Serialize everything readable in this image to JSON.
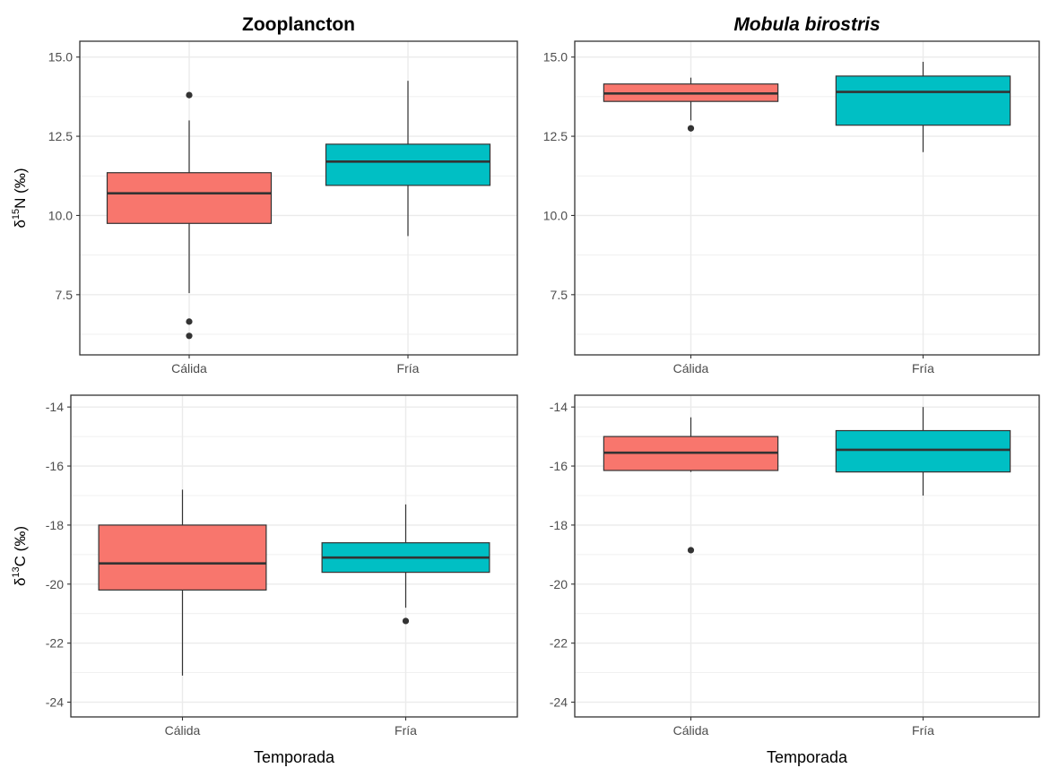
{
  "chart_data": [
    {
      "type": "boxplot",
      "title": "Zooplancton",
      "title_italic": false,
      "ylabel": {
        "prefix": "δ",
        "sup": "15",
        "rest": "N (‰)"
      },
      "xlabel": "",
      "categories": [
        "Cálida",
        "Fría"
      ],
      "ylim": [
        5.6,
        15.5
      ],
      "yticks": [
        7.5,
        10.0,
        12.5,
        15.0
      ],
      "ytick_labels": [
        "7.5",
        "10.0",
        "12.5",
        "15.0"
      ],
      "boxes": [
        {
          "category": "Cálida",
          "whisker_low": 7.55,
          "q1": 9.75,
          "median": 10.7,
          "q3": 11.35,
          "whisker_high": 13.0,
          "outliers": [
            13.8,
            6.65,
            6.2
          ],
          "color": "#F8766D"
        },
        {
          "category": "Fría",
          "whisker_low": 9.35,
          "q1": 10.95,
          "median": 11.7,
          "q3": 12.25,
          "whisker_high": 14.25,
          "outliers": [],
          "color": "#00BFC4"
        }
      ]
    },
    {
      "type": "boxplot",
      "title": "Mobula birostris",
      "title_italic": true,
      "ylabel": null,
      "xlabel": "",
      "categories": [
        "Cálida",
        "Fría"
      ],
      "ylim": [
        5.6,
        15.5
      ],
      "yticks": [
        7.5,
        10.0,
        12.5,
        15.0
      ],
      "ytick_labels": [
        "7.5",
        "10.0",
        "12.5",
        "15.0"
      ],
      "boxes": [
        {
          "category": "Cálida",
          "whisker_low": 13.0,
          "q1": 13.6,
          "median": 13.85,
          "q3": 14.15,
          "whisker_high": 14.35,
          "outliers": [
            12.75
          ],
          "color": "#F8766D"
        },
        {
          "category": "Fría",
          "whisker_low": 12.0,
          "q1": 12.85,
          "median": 13.9,
          "q3": 14.4,
          "whisker_high": 14.85,
          "outliers": [],
          "color": "#00BFC4"
        }
      ]
    },
    {
      "type": "boxplot",
      "title": "",
      "ylabel": {
        "prefix": "δ",
        "sup": "13",
        "rest": "C (‰)"
      },
      "xlabel": "Temporada",
      "categories": [
        "Cálida",
        "Fría"
      ],
      "ylim": [
        -24.5,
        -13.6
      ],
      "yticks": [
        -24,
        -22,
        -20,
        -18,
        -16,
        -14
      ],
      "ytick_labels": [
        "-24",
        "-22",
        "-20",
        "-18",
        "-16",
        "-14"
      ],
      "boxes": [
        {
          "category": "Cálida",
          "whisker_low": -23.1,
          "q1": -20.2,
          "median": -19.3,
          "q3": -18.0,
          "whisker_high": -16.8,
          "outliers": [],
          "color": "#F8766D"
        },
        {
          "category": "Fría",
          "whisker_low": -20.8,
          "q1": -19.6,
          "median": -19.1,
          "q3": -18.6,
          "whisker_high": -17.3,
          "outliers": [
            -21.25
          ],
          "color": "#00BFC4"
        }
      ]
    },
    {
      "type": "boxplot",
      "title": "",
      "ylabel": null,
      "xlabel": "Temporada",
      "categories": [
        "Cálida",
        "Fría"
      ],
      "ylim": [
        -24.5,
        -13.6
      ],
      "yticks": [
        -24,
        -22,
        -20,
        -18,
        -16,
        -14
      ],
      "ytick_labels": [
        "-24",
        "-22",
        "-20",
        "-18",
        "-16",
        "-14"
      ],
      "boxes": [
        {
          "category": "Cálida",
          "whisker_low": -16.2,
          "q1": -16.15,
          "median": -15.55,
          "q3": -15.0,
          "whisker_high": -14.35,
          "outliers": [
            -18.85
          ],
          "color": "#F8766D"
        },
        {
          "category": "Fría",
          "whisker_low": -17.0,
          "q1": -16.2,
          "median": -15.45,
          "q3": -14.8,
          "whisker_high": -14.0,
          "outliers": [],
          "color": "#00BFC4"
        }
      ]
    }
  ],
  "colors": {
    "calida": "#F8766D",
    "fria": "#00BFC4",
    "grid": "#ebebeb",
    "panel_border": "#333333"
  }
}
